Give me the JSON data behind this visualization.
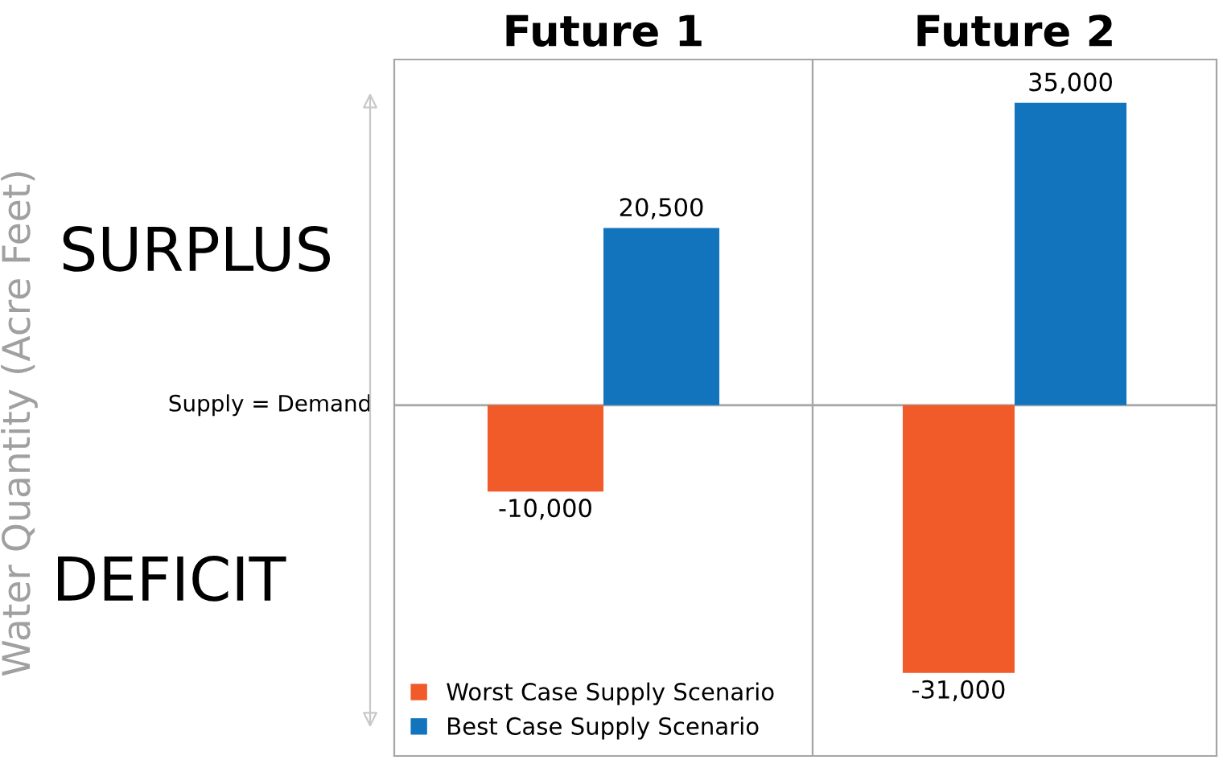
{
  "chart_data": [
    {
      "type": "bar",
      "title": "Future 1",
      "categories": [
        null
      ],
      "ylabel": "Water Quantity (Acre Feet)",
      "ylim": [
        -40600,
        40000
      ],
      "legend": "bottom left",
      "series": [
        {
          "name": "Worst Case Supply Scenario",
          "color": "#f15a29",
          "values": [
            -10000
          ],
          "value_labels": [
            "-10,000"
          ]
        },
        {
          "name": "Best Case Supply Scenario",
          "color": "#1174bc",
          "values": [
            20500
          ],
          "value_labels": [
            "20,500"
          ]
        }
      ],
      "ref_lines": [
        {
          "axis": "y",
          "value": 0,
          "label": "Supply = Demand",
          "color": "#a6a6a6"
        }
      ],
      "annotations": [
        "SURPLUS",
        "DEFICIT"
      ]
    },
    {
      "type": "bar",
      "title": "Future 2",
      "categories": [
        null
      ],
      "ylim": [
        -40600,
        40000
      ],
      "series": [
        {
          "color": "#f15a29",
          "values": [
            -31000
          ],
          "value_labels": [
            "-31,000"
          ]
        },
        {
          "color": "#1174bc",
          "values": [
            35000
          ],
          "value_labels": [
            "35,000"
          ]
        }
      ],
      "ref_lines": [
        {
          "axis": "y",
          "value": 0,
          "color": "#a6a6a6"
        }
      ]
    }
  ]
}
